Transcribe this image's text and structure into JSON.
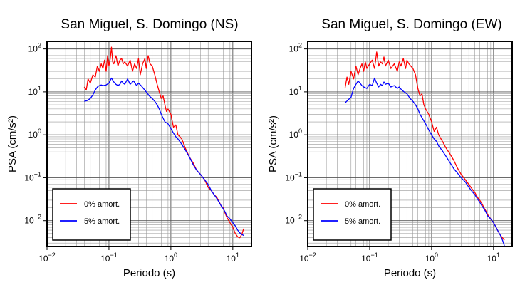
{
  "chart_data": [
    {
      "type": "line",
      "title": "San Miguel, S. Domingo (NS)",
      "xlabel": "Periodo (s)",
      "ylabel": "PSA (cm/s²)",
      "x_scale": "log",
      "y_scale": "log",
      "xlim": [
        0.01,
        20
      ],
      "ylim": [
        0.0025,
        150
      ],
      "x_ticks": [
        {
          "base": "10",
          "exp": "−2"
        },
        {
          "base": "10",
          "exp": "−1"
        },
        {
          "base": "10",
          "exp": "0"
        },
        {
          "base": "10",
          "exp": "1"
        }
      ],
      "y_ticks": [
        {
          "base": "10",
          "exp": "−2"
        },
        {
          "base": "10",
          "exp": "−1"
        },
        {
          "base": "10",
          "exp": "0"
        },
        {
          "base": "10",
          "exp": "1"
        },
        {
          "base": "10",
          "exp": "2"
        }
      ],
      "grid": true,
      "legend_position": "bottom-left",
      "series": [
        {
          "name": "0% amort.",
          "color": "#ff0000",
          "x": [
            0.04,
            0.043,
            0.046,
            0.05,
            0.055,
            0.06,
            0.065,
            0.07,
            0.075,
            0.08,
            0.085,
            0.09,
            0.095,
            0.1,
            0.105,
            0.11,
            0.115,
            0.12,
            0.13,
            0.14,
            0.15,
            0.16,
            0.17,
            0.18,
            0.2,
            0.22,
            0.24,
            0.26,
            0.28,
            0.3,
            0.32,
            0.35,
            0.38,
            0.4,
            0.43,
            0.46,
            0.5,
            0.55,
            0.6,
            0.65,
            0.7,
            0.75,
            0.8,
            0.85,
            0.9,
            1.0,
            1.1,
            1.2,
            1.3,
            1.4,
            1.5,
            1.7,
            2.0,
            2.3,
            2.6,
            3.0,
            3.5,
            4.0,
            4.5,
            5.0,
            5.5,
            6.0,
            6.5,
            7.0,
            7.5,
            8.0,
            9.0,
            10.0,
            11.0,
            12.0,
            13.0,
            14.0,
            15.0
          ],
          "y": [
            13,
            11,
            20,
            16,
            25,
            22,
            40,
            30,
            45,
            35,
            55,
            30,
            70,
            40,
            60,
            110,
            50,
            45,
            70,
            40,
            55,
            60,
            45,
            50,
            40,
            55,
            30,
            45,
            35,
            60,
            25,
            45,
            60,
            35,
            70,
            45,
            40,
            25,
            15,
            10,
            7,
            8,
            5,
            3.5,
            4,
            3,
            1.5,
            1.7,
            1.0,
            0.9,
            0.8,
            0.5,
            0.3,
            0.22,
            0.15,
            0.12,
            0.09,
            0.06,
            0.05,
            0.04,
            0.035,
            0.028,
            0.022,
            0.02,
            0.015,
            0.012,
            0.009,
            0.007,
            0.005,
            0.0042,
            0.004,
            0.0048,
            0.0065
          ]
        },
        {
          "name": "5% amort.",
          "color": "#0000ff",
          "x": [
            0.04,
            0.045,
            0.05,
            0.055,
            0.06,
            0.065,
            0.07,
            0.075,
            0.08,
            0.09,
            0.1,
            0.11,
            0.12,
            0.13,
            0.14,
            0.15,
            0.16,
            0.17,
            0.18,
            0.2,
            0.22,
            0.25,
            0.28,
            0.3,
            0.33,
            0.36,
            0.4,
            0.45,
            0.5,
            0.55,
            0.6,
            0.65,
            0.7,
            0.8,
            0.9,
            1.0,
            1.1,
            1.2,
            1.3,
            1.5,
            1.7,
            2.0,
            2.3,
            2.6,
            3.0,
            3.5,
            4.0,
            4.5,
            5.0,
            5.5,
            6.0,
            6.5,
            7.0,
            7.5,
            8.0,
            9.0,
            10.0,
            11.0,
            12.0,
            13.0,
            14.0,
            15.0
          ],
          "y": [
            6,
            6.3,
            7,
            8.5,
            11,
            13,
            14,
            14.5,
            14,
            14.5,
            16,
            21,
            17,
            15,
            14,
            15,
            18,
            16,
            15,
            20,
            15,
            18,
            14,
            16,
            14,
            12,
            10,
            8,
            7,
            6,
            5,
            4,
            3,
            2,
            1.8,
            1.4,
            1.1,
            0.9,
            0.8,
            0.6,
            0.45,
            0.3,
            0.2,
            0.15,
            0.12,
            0.09,
            0.07,
            0.05,
            0.04,
            0.033,
            0.027,
            0.022,
            0.019,
            0.016,
            0.013,
            0.011,
            0.009,
            0.0075,
            0.006,
            0.0052,
            0.0048,
            0.0045
          ]
        }
      ]
    },
    {
      "type": "line",
      "title": "San Miguel, S. Domingo (EW)",
      "xlabel": "Periodo (s)",
      "ylabel": "PSA (cm/s²)",
      "x_scale": "log",
      "y_scale": "log",
      "xlim": [
        0.01,
        20
      ],
      "ylim": [
        0.0025,
        150
      ],
      "x_ticks": [
        {
          "base": "10",
          "exp": "−2"
        },
        {
          "base": "10",
          "exp": "−1"
        },
        {
          "base": "10",
          "exp": "0"
        },
        {
          "base": "10",
          "exp": "1"
        }
      ],
      "y_ticks": [
        {
          "base": "10",
          "exp": "−2"
        },
        {
          "base": "10",
          "exp": "−1"
        },
        {
          "base": "10",
          "exp": "0"
        },
        {
          "base": "10",
          "exp": "1"
        },
        {
          "base": "10",
          "exp": "2"
        }
      ],
      "grid": true,
      "legend_position": "bottom-left",
      "series": [
        {
          "name": "0% amort.",
          "color": "#ff0000",
          "x": [
            0.04,
            0.043,
            0.046,
            0.05,
            0.055,
            0.06,
            0.065,
            0.07,
            0.075,
            0.08,
            0.085,
            0.09,
            0.1,
            0.11,
            0.12,
            0.13,
            0.14,
            0.15,
            0.16,
            0.17,
            0.18,
            0.2,
            0.22,
            0.25,
            0.28,
            0.3,
            0.32,
            0.35,
            0.38,
            0.4,
            0.43,
            0.46,
            0.5,
            0.55,
            0.6,
            0.65,
            0.7,
            0.75,
            0.8,
            0.9,
            1.0,
            1.1,
            1.2,
            1.3,
            1.5,
            1.7,
            2.0,
            2.3,
            2.6,
            3.0,
            3.5,
            4.0,
            4.5,
            5.0,
            5.5,
            6.0,
            6.5,
            7.0,
            7.5,
            8.0,
            9.0,
            10.0,
            11.0,
            12.0,
            13.0,
            14.0,
            15.0
          ],
          "y": [
            12,
            22,
            15,
            30,
            20,
            40,
            25,
            35,
            45,
            30,
            50,
            35,
            45,
            55,
            35,
            85,
            40,
            50,
            45,
            65,
            40,
            55,
            35,
            45,
            30,
            50,
            40,
            60,
            35,
            55,
            45,
            40,
            35,
            25,
            12,
            8,
            9,
            5,
            4,
            3,
            2,
            1.2,
            1.5,
            1.0,
            0.7,
            0.5,
            0.35,
            0.25,
            0.17,
            0.12,
            0.09,
            0.07,
            0.055,
            0.045,
            0.035,
            0.03,
            0.025,
            0.02,
            0.017,
            0.014,
            0.011,
            0.009,
            0.007,
            0.0055,
            0.0045,
            0.004,
            0.0035
          ]
        },
        {
          "name": "5% amort.",
          "color": "#0000ff",
          "x": [
            0.04,
            0.045,
            0.05,
            0.055,
            0.06,
            0.065,
            0.07,
            0.075,
            0.08,
            0.09,
            0.1,
            0.11,
            0.12,
            0.13,
            0.14,
            0.15,
            0.16,
            0.17,
            0.18,
            0.2,
            0.22,
            0.25,
            0.28,
            0.3,
            0.33,
            0.36,
            0.4,
            0.45,
            0.5,
            0.55,
            0.6,
            0.65,
            0.7,
            0.8,
            0.9,
            1.0,
            1.1,
            1.2,
            1.3,
            1.5,
            1.7,
            2.0,
            2.3,
            2.6,
            3.0,
            3.5,
            4.0,
            4.5,
            5.0,
            5.5,
            6.0,
            6.5,
            7.0,
            7.5,
            8.0,
            9.0,
            10.0,
            11.0,
            12.0,
            13.0,
            14.0,
            15.0
          ],
          "y": [
            5.5,
            6.5,
            7.5,
            12,
            15,
            18,
            16,
            14,
            13,
            12,
            15,
            14,
            21,
            16,
            13,
            15,
            14,
            17,
            15,
            16,
            13,
            14,
            12,
            13,
            11,
            10,
            9,
            7,
            6,
            5,
            4,
            3,
            2.5,
            1.8,
            1.3,
            1.0,
            0.8,
            0.7,
            0.55,
            0.42,
            0.32,
            0.22,
            0.16,
            0.13,
            0.1,
            0.08,
            0.06,
            0.048,
            0.04,
            0.032,
            0.027,
            0.022,
            0.019,
            0.016,
            0.013,
            0.011,
            0.009,
            0.007,
            0.0055,
            0.0045,
            0.0035,
            0.0026
          ]
        }
      ]
    }
  ]
}
